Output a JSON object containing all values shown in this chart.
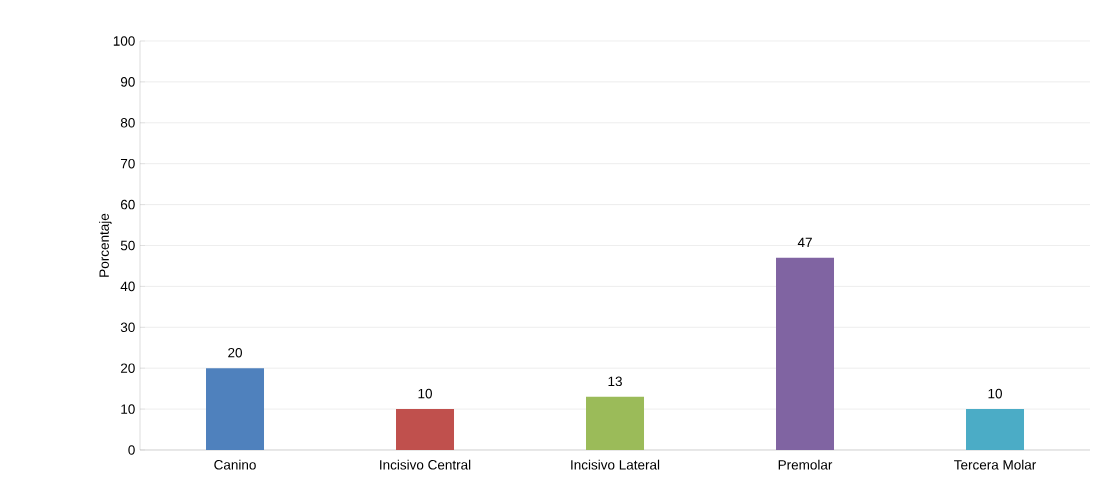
{
  "chart_data": {
    "type": "bar",
    "ylabel": "Porcentaje",
    "categories": [
      "Canino",
      "Incisivo Central",
      "Incisivo Lateral",
      "Premolar",
      "Tercera Molar"
    ],
    "values": [
      20,
      10,
      13,
      47,
      10
    ],
    "colors": [
      "#4f81bd",
      "#c0504d",
      "#9bbb59",
      "#8064a2",
      "#4bacc6"
    ],
    "ylim": [
      0,
      100
    ],
    "yticks": [
      0,
      10,
      20,
      30,
      40,
      50,
      60,
      70,
      80,
      90,
      100
    ],
    "grid": "y",
    "data_labels": true
  }
}
